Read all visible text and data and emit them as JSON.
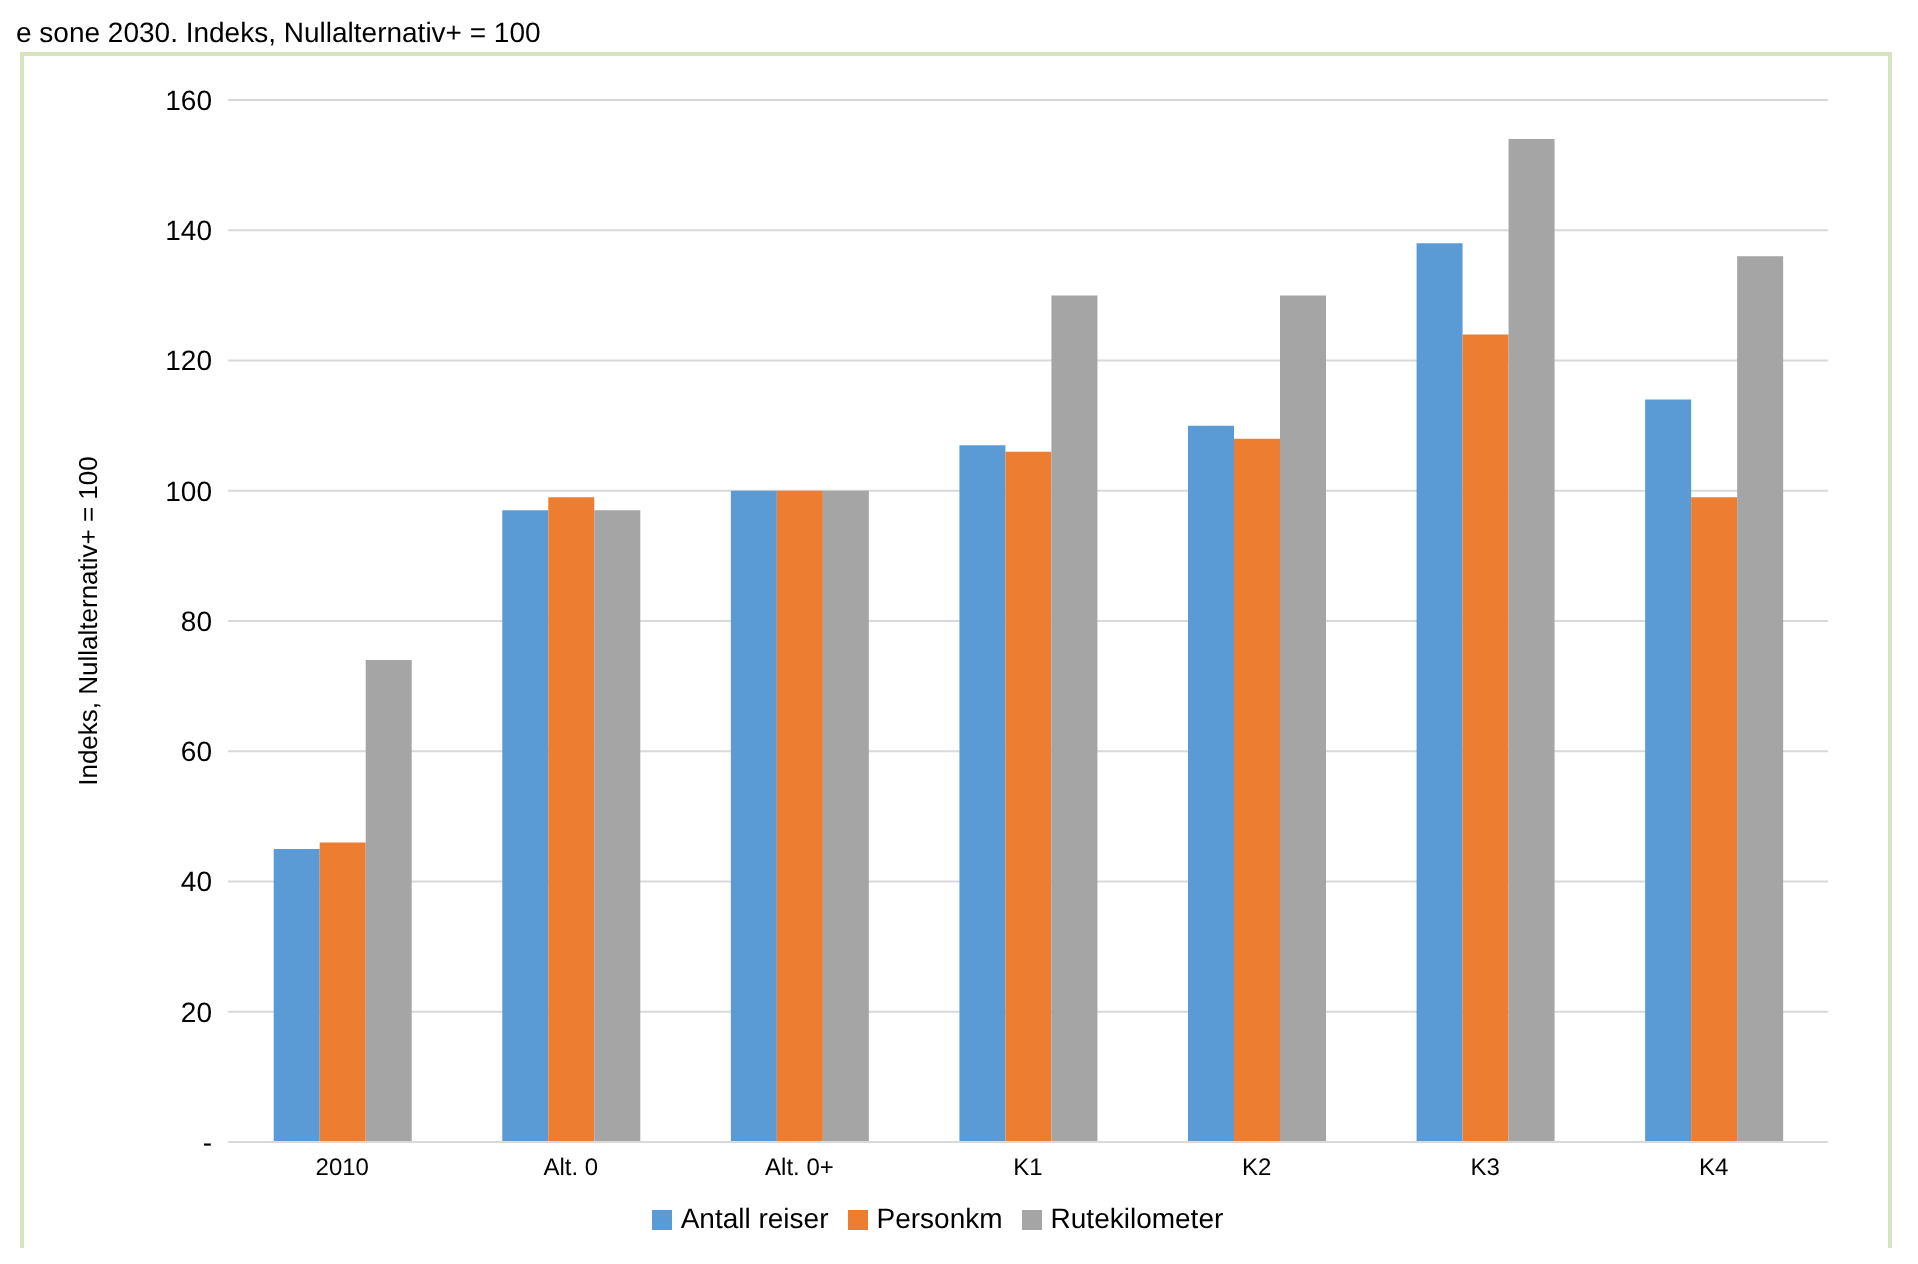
{
  "chart_data": {
    "type": "bar",
    "title": "e sone 2030. Indeks, Nullalternativ+ = 100",
    "ylabel": "Indeks, Nullalternativ+ = 100",
    "categories": [
      "2010",
      "Alt. 0",
      "Alt. 0+",
      "K1",
      "K2",
      "K3",
      "K4"
    ],
    "series": [
      {
        "name": "Antall reiser",
        "color": "#5b9bd5",
        "values": [
          45,
          97,
          100,
          107,
          110,
          138,
          114
        ]
      },
      {
        "name": "Personkm",
        "color": "#ed7d31",
        "values": [
          46,
          99,
          100,
          106,
          108,
          124,
          99
        ]
      },
      {
        "name": "Rutekilometer",
        "color": "#a5a5a5",
        "values": [
          74,
          97,
          100,
          130,
          130,
          154,
          136
        ]
      }
    ],
    "ylim": [
      0,
      160
    ],
    "yticks": [
      {
        "value": 0,
        "label": "-"
      },
      20,
      40,
      60,
      80,
      100,
      120,
      140,
      160
    ],
    "grid": "y",
    "legend": "bottom"
  }
}
